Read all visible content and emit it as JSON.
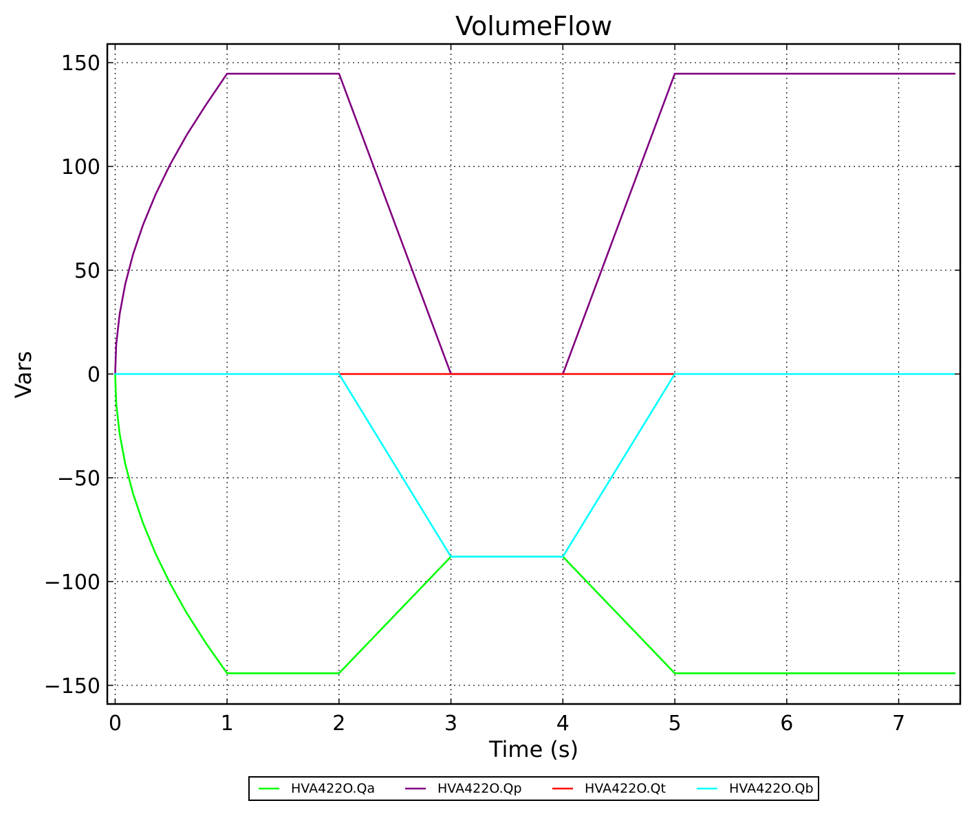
{
  "chart_data": {
    "type": "line",
    "title": "VolumeFlow",
    "xlabel": "Time (s)",
    "ylabel": "Vars",
    "xlim": [
      -0.07,
      7.55
    ],
    "ylim": [
      -159,
      159
    ],
    "xticks": [
      0,
      1,
      2,
      3,
      4,
      5,
      6,
      7
    ],
    "yticks": [
      150,
      100,
      50,
      0,
      -50,
      -100,
      -150
    ],
    "ytick_labels": [
      "150",
      "100",
      "50",
      "0",
      "−50",
      "−100",
      "−150"
    ],
    "grid": true,
    "legend_position": "bottom-center-outside",
    "series": [
      {
        "name": "HVA422O.Qa",
        "color": "#00ff00",
        "points": [
          [
            0,
            0
          ],
          [
            0.01,
            -14.4
          ],
          [
            0.04,
            -28.8
          ],
          [
            0.09,
            -43.2
          ],
          [
            0.16,
            -57.6
          ],
          [
            0.25,
            -72
          ],
          [
            0.36,
            -86.4
          ],
          [
            0.49,
            -100.8
          ],
          [
            0.64,
            -115.2
          ],
          [
            0.81,
            -129.6
          ],
          [
            1,
            -144.2
          ],
          [
            2,
            -144.2
          ],
          [
            3,
            -88
          ],
          [
            4,
            -88
          ],
          [
            5,
            -144.2
          ],
          [
            7.5,
            -144.2
          ]
        ]
      },
      {
        "name": "HVA422O.Qp",
        "color": "#800080",
        "points": [
          [
            0,
            0
          ],
          [
            0.01,
            14.4
          ],
          [
            0.04,
            28.8
          ],
          [
            0.09,
            43.2
          ],
          [
            0.16,
            57.6
          ],
          [
            0.25,
            72
          ],
          [
            0.36,
            86.4
          ],
          [
            0.49,
            100.8
          ],
          [
            0.64,
            115.2
          ],
          [
            0.81,
            129.6
          ],
          [
            1,
            144.7
          ],
          [
            2,
            144.7
          ],
          [
            3,
            0
          ],
          [
            4,
            0
          ],
          [
            5,
            144.7
          ],
          [
            7.5,
            144.7
          ]
        ]
      },
      {
        "name": "HVA422O.Qt",
        "color": "#ff0000",
        "points": [
          [
            2,
            0
          ],
          [
            5,
            0
          ]
        ]
      },
      {
        "name": "HVA422O.Qb",
        "color": "#00ffff",
        "points": [
          [
            0,
            0
          ],
          [
            2,
            0
          ],
          [
            3,
            -88
          ],
          [
            4,
            -88
          ],
          [
            5,
            0
          ],
          [
            7.5,
            0
          ]
        ]
      }
    ]
  }
}
